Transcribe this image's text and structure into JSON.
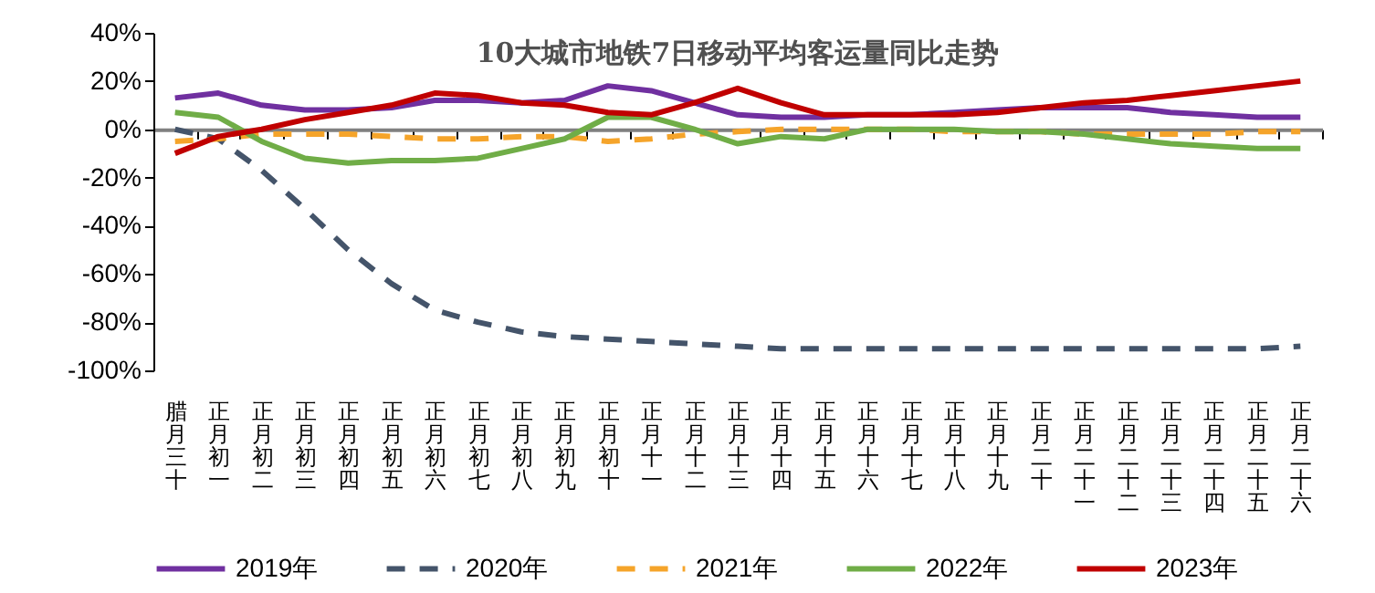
{
  "chart_data": {
    "type": "line",
    "title": "10大城市地铁7日移动平均客运量同比走势",
    "categories": [
      "腊月三十",
      "正月初一",
      "正月初二",
      "正月初三",
      "正月初四",
      "正月初五",
      "正月初六",
      "正月初七",
      "正月初八",
      "正月初九",
      "正月初十",
      "正月十一",
      "正月十二",
      "正月十三",
      "正月十四",
      "正月十五",
      "正月十六",
      "正月十七",
      "正月十八",
      "正月十九",
      "正月二十",
      "正月二十一",
      "正月二十二",
      "正月二十三",
      "正月二十四",
      "正月二十五",
      "正月二十六"
    ],
    "series": [
      {
        "name": "2019年",
        "color": "#7030a0",
        "line_style": "solid",
        "values": [
          13,
          15,
          10,
          8,
          8,
          9,
          12,
          12,
          11,
          12,
          18,
          16,
          11,
          6,
          5,
          5,
          6,
          6,
          7,
          8,
          9,
          9,
          9,
          7,
          6,
          5,
          5
        ]
      },
      {
        "name": "2020年",
        "color": "#44546a",
        "line_style": "dashed",
        "values": [
          0,
          -4,
          -17,
          -33,
          -50,
          -64,
          -75,
          -80,
          -84,
          -86,
          -87,
          -88,
          -89,
          -90,
          -91,
          -91,
          -91,
          -91,
          -91,
          -91,
          -91,
          -91,
          -91,
          -91,
          -91,
          -91,
          -90
        ]
      },
      {
        "name": "2021年",
        "color": "#f5a42a",
        "line_style": "dashed",
        "values": [
          -5,
          -4,
          -2,
          -2,
          -2,
          -3,
          -4,
          -4,
          -3,
          -3,
          -5,
          -4,
          -2,
          -1,
          0,
          0,
          0,
          0,
          -1,
          -1,
          -1,
          -2,
          -2,
          -2,
          -2,
          -1,
          -1
        ]
      },
      {
        "name": "2022年",
        "color": "#70ad47",
        "line_style": "solid",
        "values": [
          7,
          5,
          -5,
          -12,
          -14,
          -13,
          -13,
          -12,
          -8,
          -4,
          5,
          5,
          0,
          -6,
          -3,
          -4,
          0,
          0,
          0,
          -1,
          -1,
          -2,
          -4,
          -6,
          -7,
          -8,
          -8
        ]
      },
      {
        "name": "2023年",
        "color": "#c00000",
        "line_style": "solid",
        "values": [
          -10,
          -3,
          0,
          4,
          7,
          10,
          15,
          14,
          11,
          10,
          7,
          6,
          11,
          17,
          11,
          6,
          6,
          6,
          6,
          7,
          9,
          11,
          12,
          14,
          16,
          18,
          20
        ]
      }
    ],
    "ylim": [
      -100,
      40
    ],
    "yticks": [
      {
        "value": -100,
        "label": "-100%"
      },
      {
        "value": -80,
        "label": "-80%"
      },
      {
        "value": -60,
        "label": "-60%"
      },
      {
        "value": -40,
        "label": "-40%"
      },
      {
        "value": -20,
        "label": "-20%"
      },
      {
        "value": 0,
        "label": "0%"
      },
      {
        "value": 20,
        "label": "20%"
      },
      {
        "value": 40,
        "label": "40%"
      }
    ],
    "legend": "bottom"
  }
}
